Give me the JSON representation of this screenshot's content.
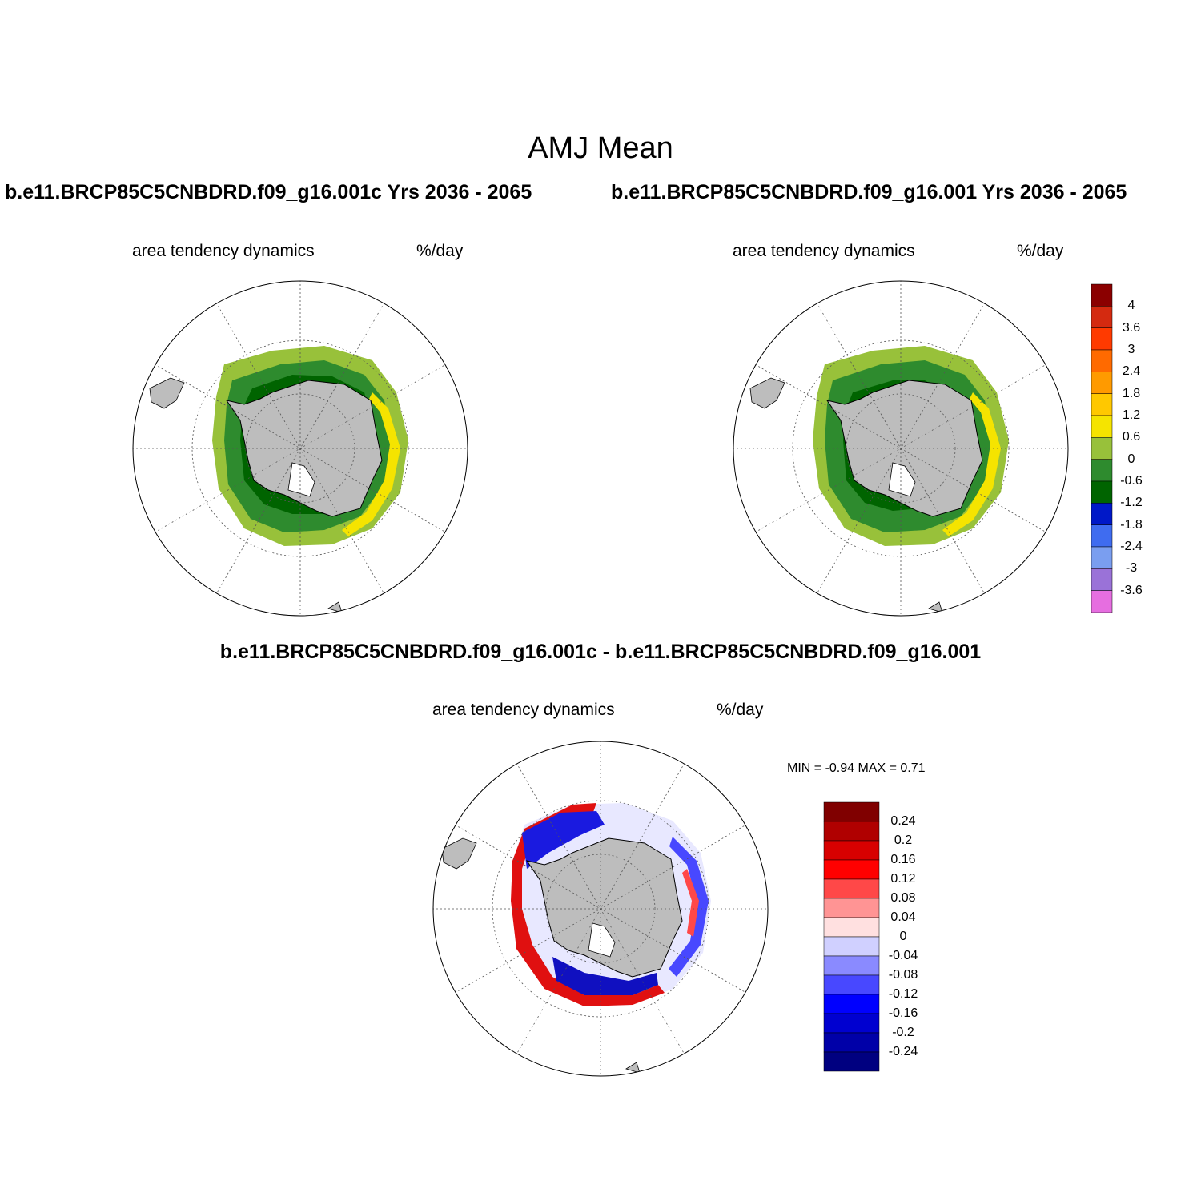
{
  "page": {
    "title": "AMJ Mean",
    "panel_left_title": "b.e11.BRCP85C5CNBDRD.f09_g16.001c  Yrs 2036 - 2065",
    "panel_right_title": "b.e11.BRCP85C5CNBDRD.f09_g16.001  Yrs 2036 - 2065",
    "diff_title": "b.e11.BRCP85C5CNBDRD.f09_g16.001c - b.e11.BRCP85C5CNBDRD.f09_g16.001"
  },
  "panels": {
    "left": {
      "variable": "area tendency dynamics",
      "units": "%/day"
    },
    "right": {
      "variable": "area tendency dynamics",
      "units": "%/day"
    },
    "diff": {
      "variable": "area tendency dynamics",
      "units": "%/day",
      "minmax": "MIN =  -0.94 MAX =   0.71"
    }
  },
  "colorbar_main": {
    "labels": [
      "4",
      "3.6",
      "3",
      "2.4",
      "1.8",
      "1.2",
      "0.6",
      "0",
      "-0.6",
      "-1.2",
      "-1.8",
      "-2.4",
      "-3",
      "-3.6"
    ],
    "colors": [
      "#8b0000",
      "#d42a10",
      "#ff3a00",
      "#ff6a00",
      "#ff9a00",
      "#ffc800",
      "#f5e400",
      "#98c13a",
      "#2e8b2e",
      "#006400",
      "#0018c8",
      "#3f6cf0",
      "#7a9ef0",
      "#9a72d8",
      "#e66ee0"
    ]
  },
  "colorbar_diff": {
    "labels": [
      "0.24",
      "0.2",
      "0.16",
      "0.12",
      "0.08",
      "0.04",
      "0",
      "-0.04",
      "-0.08",
      "-0.12",
      "-0.16",
      "-0.2",
      "-0.24"
    ],
    "colors": [
      "#800000",
      "#b00000",
      "#d80000",
      "#ff0000",
      "#ff4848",
      "#ff9494",
      "#ffe0e0",
      "#d0d0ff",
      "#8a8aff",
      "#4848ff",
      "#0000ff",
      "#0000d0",
      "#0000a8",
      "#000080"
    ]
  }
}
